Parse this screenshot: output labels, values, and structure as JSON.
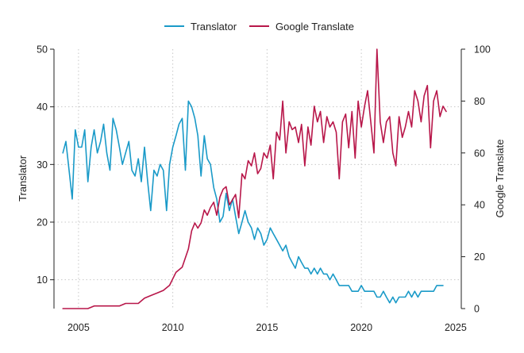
{
  "chart_data": {
    "type": "line",
    "title": "",
    "xlabel": "",
    "y_left_label": "Translator",
    "y_right_label": "Google Translate",
    "legend_position": "top-center",
    "grid": true,
    "xlim": [
      2003.7,
      2025.3
    ],
    "ylim_left": [
      5,
      50
    ],
    "ylim_right": [
      0,
      100
    ],
    "x_ticks": [
      "2005",
      "2010",
      "2015",
      "2020",
      "2025"
    ],
    "y_left_ticks": [
      "10",
      "20",
      "30",
      "40",
      "50"
    ],
    "y_right_ticks": [
      "0",
      "20",
      "40",
      "60",
      "80",
      "100"
    ],
    "series": [
      {
        "name": "Translator",
        "axis": "left",
        "color": "#1a9ac8",
        "points": [
          [
            2004.17,
            32
          ],
          [
            2004.33,
            34
          ],
          [
            2004.5,
            29
          ],
          [
            2004.67,
            24
          ],
          [
            2004.83,
            36
          ],
          [
            2005.0,
            33
          ],
          [
            2005.17,
            33
          ],
          [
            2005.33,
            36
          ],
          [
            2005.5,
            27
          ],
          [
            2005.67,
            33
          ],
          [
            2005.83,
            36
          ],
          [
            2006.0,
            32
          ],
          [
            2006.17,
            34
          ],
          [
            2006.33,
            37
          ],
          [
            2006.5,
            32
          ],
          [
            2006.67,
            29
          ],
          [
            2006.83,
            38
          ],
          [
            2007.0,
            36
          ],
          [
            2007.17,
            33
          ],
          [
            2007.33,
            30
          ],
          [
            2007.5,
            32
          ],
          [
            2007.67,
            34
          ],
          [
            2007.83,
            29
          ],
          [
            2008.0,
            28
          ],
          [
            2008.17,
            31
          ],
          [
            2008.33,
            27
          ],
          [
            2008.5,
            33
          ],
          [
            2008.67,
            27
          ],
          [
            2008.83,
            22
          ],
          [
            2009.0,
            29
          ],
          [
            2009.17,
            28
          ],
          [
            2009.33,
            30
          ],
          [
            2009.5,
            29
          ],
          [
            2009.67,
            22
          ],
          [
            2009.83,
            30
          ],
          [
            2010.0,
            33
          ],
          [
            2010.17,
            35
          ],
          [
            2010.33,
            37
          ],
          [
            2010.5,
            38
          ],
          [
            2010.67,
            29
          ],
          [
            2010.83,
            41
          ],
          [
            2011.0,
            40
          ],
          [
            2011.17,
            38
          ],
          [
            2011.33,
            35
          ],
          [
            2011.5,
            28
          ],
          [
            2011.67,
            35
          ],
          [
            2011.83,
            31
          ],
          [
            2012.0,
            30
          ],
          [
            2012.17,
            26
          ],
          [
            2012.33,
            24
          ],
          [
            2012.5,
            20
          ],
          [
            2012.67,
            21
          ],
          [
            2012.83,
            25
          ],
          [
            2013.0,
            22
          ],
          [
            2013.17,
            24
          ],
          [
            2013.33,
            21
          ],
          [
            2013.5,
            18
          ],
          [
            2013.67,
            20
          ],
          [
            2013.83,
            22
          ],
          [
            2014.0,
            20
          ],
          [
            2014.17,
            19
          ],
          [
            2014.33,
            17
          ],
          [
            2014.5,
            19
          ],
          [
            2014.67,
            18
          ],
          [
            2014.83,
            16
          ],
          [
            2015.0,
            17
          ],
          [
            2015.17,
            19
          ],
          [
            2015.33,
            18
          ],
          [
            2015.5,
            17
          ],
          [
            2015.67,
            16
          ],
          [
            2015.83,
            15
          ],
          [
            2016.0,
            16
          ],
          [
            2016.17,
            14
          ],
          [
            2016.33,
            13
          ],
          [
            2016.5,
            12
          ],
          [
            2016.67,
            14
          ],
          [
            2016.83,
            13
          ],
          [
            2017.0,
            12
          ],
          [
            2017.17,
            12
          ],
          [
            2017.33,
            11
          ],
          [
            2017.5,
            12
          ],
          [
            2017.67,
            11
          ],
          [
            2017.83,
            12
          ],
          [
            2018.0,
            11
          ],
          [
            2018.17,
            11
          ],
          [
            2018.33,
            10
          ],
          [
            2018.5,
            11
          ],
          [
            2018.67,
            10
          ],
          [
            2018.83,
            9
          ],
          [
            2019.0,
            9
          ],
          [
            2019.17,
            9
          ],
          [
            2019.33,
            9
          ],
          [
            2019.5,
            8
          ],
          [
            2019.67,
            8
          ],
          [
            2019.83,
            8
          ],
          [
            2020.0,
            9
          ],
          [
            2020.17,
            8
          ],
          [
            2020.33,
            8
          ],
          [
            2020.5,
            8
          ],
          [
            2020.67,
            8
          ],
          [
            2020.83,
            7
          ],
          [
            2021.0,
            7
          ],
          [
            2021.17,
            8
          ],
          [
            2021.33,
            7
          ],
          [
            2021.5,
            6
          ],
          [
            2021.67,
            7
          ],
          [
            2021.83,
            6
          ],
          [
            2022.0,
            7
          ],
          [
            2022.17,
            7
          ],
          [
            2022.33,
            7
          ],
          [
            2022.5,
            8
          ],
          [
            2022.67,
            7
          ],
          [
            2022.83,
            8
          ],
          [
            2023.0,
            7
          ],
          [
            2023.17,
            8
          ],
          [
            2023.33,
            8
          ],
          [
            2023.5,
            8
          ],
          [
            2023.67,
            8
          ],
          [
            2023.83,
            8
          ],
          [
            2024.0,
            9
          ],
          [
            2024.17,
            9
          ],
          [
            2024.33,
            9
          ]
        ]
      },
      {
        "name": "Google Translate",
        "axis": "right",
        "color": "#b8174a",
        "points": [
          [
            2004.17,
            0
          ],
          [
            2004.5,
            0
          ],
          [
            2004.83,
            0
          ],
          [
            2005.17,
            0
          ],
          [
            2005.5,
            0
          ],
          [
            2005.83,
            1
          ],
          [
            2006.17,
            1
          ],
          [
            2006.5,
            1
          ],
          [
            2006.83,
            1
          ],
          [
            2007.17,
            1
          ],
          [
            2007.5,
            2
          ],
          [
            2007.83,
            2
          ],
          [
            2008.17,
            2
          ],
          [
            2008.5,
            4
          ],
          [
            2008.83,
            5
          ],
          [
            2009.17,
            6
          ],
          [
            2009.5,
            7
          ],
          [
            2009.83,
            9
          ],
          [
            2010.17,
            14
          ],
          [
            2010.5,
            16
          ],
          [
            2010.83,
            23
          ],
          [
            2011.0,
            30
          ],
          [
            2011.17,
            33
          ],
          [
            2011.33,
            31
          ],
          [
            2011.5,
            33
          ],
          [
            2011.67,
            38
          ],
          [
            2011.83,
            36
          ],
          [
            2012.0,
            39
          ],
          [
            2012.17,
            41
          ],
          [
            2012.33,
            36
          ],
          [
            2012.5,
            43
          ],
          [
            2012.67,
            46
          ],
          [
            2012.83,
            47
          ],
          [
            2013.0,
            40
          ],
          [
            2013.17,
            42
          ],
          [
            2013.33,
            44
          ],
          [
            2013.5,
            35
          ],
          [
            2013.67,
            52
          ],
          [
            2013.83,
            50
          ],
          [
            2014.0,
            57
          ],
          [
            2014.17,
            55
          ],
          [
            2014.33,
            60
          ],
          [
            2014.5,
            52
          ],
          [
            2014.67,
            54
          ],
          [
            2014.83,
            60
          ],
          [
            2015.0,
            58
          ],
          [
            2015.17,
            63
          ],
          [
            2015.33,
            50
          ],
          [
            2015.5,
            68
          ],
          [
            2015.67,
            65
          ],
          [
            2015.83,
            80
          ],
          [
            2016.0,
            60
          ],
          [
            2016.17,
            72
          ],
          [
            2016.33,
            69
          ],
          [
            2016.5,
            70
          ],
          [
            2016.67,
            64
          ],
          [
            2016.83,
            71
          ],
          [
            2017.0,
            55
          ],
          [
            2017.17,
            70
          ],
          [
            2017.33,
            63
          ],
          [
            2017.5,
            78
          ],
          [
            2017.67,
            72
          ],
          [
            2017.83,
            76
          ],
          [
            2018.0,
            64
          ],
          [
            2018.17,
            74
          ],
          [
            2018.33,
            70
          ],
          [
            2018.5,
            72
          ],
          [
            2018.67,
            68
          ],
          [
            2018.83,
            50
          ],
          [
            2019.0,
            72
          ],
          [
            2019.17,
            75
          ],
          [
            2019.33,
            62
          ],
          [
            2019.5,
            76
          ],
          [
            2019.67,
            58
          ],
          [
            2019.83,
            80
          ],
          [
            2020.0,
            70
          ],
          [
            2020.17,
            78
          ],
          [
            2020.33,
            84
          ],
          [
            2020.5,
            72
          ],
          [
            2020.67,
            60
          ],
          [
            2020.83,
            100
          ],
          [
            2021.0,
            72
          ],
          [
            2021.17,
            64
          ],
          [
            2021.33,
            72
          ],
          [
            2021.5,
            74
          ],
          [
            2021.67,
            60
          ],
          [
            2021.83,
            55
          ],
          [
            2022.0,
            74
          ],
          [
            2022.17,
            66
          ],
          [
            2022.33,
            70
          ],
          [
            2022.5,
            76
          ],
          [
            2022.67,
            70
          ],
          [
            2022.83,
            84
          ],
          [
            2023.0,
            80
          ],
          [
            2023.17,
            72
          ],
          [
            2023.33,
            82
          ],
          [
            2023.5,
            86
          ],
          [
            2023.67,
            62
          ],
          [
            2023.83,
            80
          ],
          [
            2024.0,
            84
          ],
          [
            2024.17,
            74
          ],
          [
            2024.33,
            78
          ],
          [
            2024.5,
            76
          ]
        ]
      }
    ]
  }
}
